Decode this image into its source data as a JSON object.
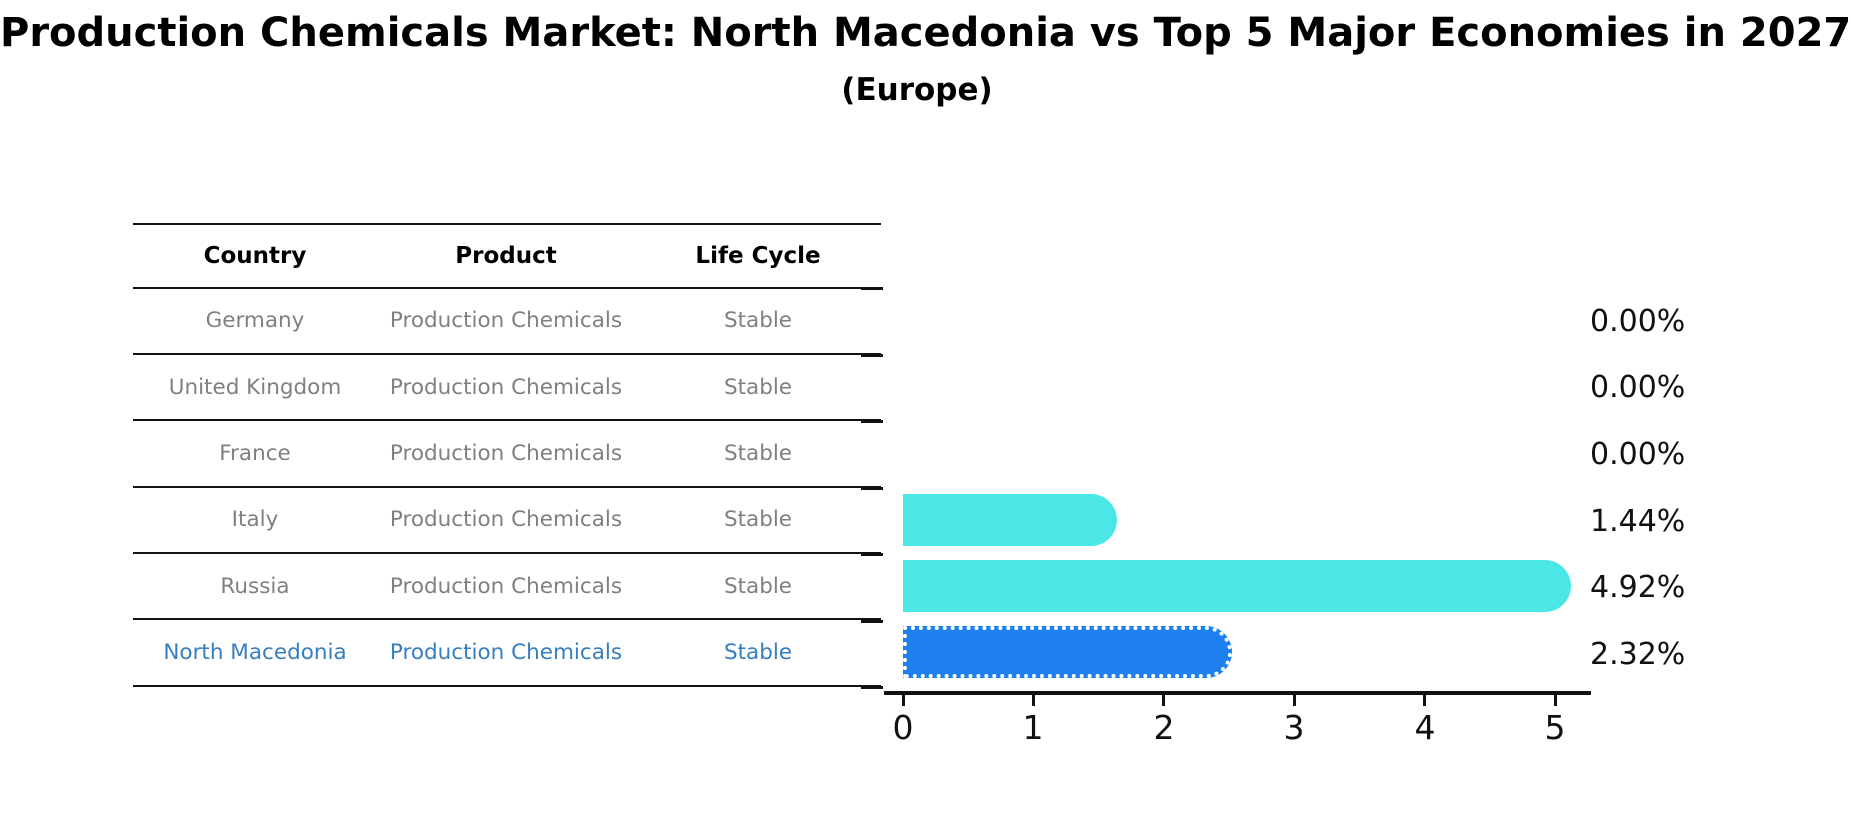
{
  "title": "Production Chemicals Market: North Macedonia vs Top 5 Major Economies in 2027",
  "subtitle": "(Europe)",
  "table": {
    "headers": [
      "Country",
      "Product",
      "Life Cycle"
    ],
    "rows": [
      {
        "country": "Germany",
        "product": "Production Chemicals",
        "life_cycle": "Stable",
        "value_label": "0.00%",
        "highlight": false
      },
      {
        "country": "United Kingdom",
        "product": "Production Chemicals",
        "life_cycle": "Stable",
        "value_label": "0.00%",
        "highlight": false
      },
      {
        "country": "France",
        "product": "Production Chemicals",
        "life_cycle": "Stable",
        "value_label": "0.00%",
        "highlight": false
      },
      {
        "country": "Italy",
        "product": "Production Chemicals",
        "life_cycle": "Stable",
        "value_label": "1.44%",
        "highlight": false
      },
      {
        "country": "Russia",
        "product": "Production Chemicals",
        "life_cycle": "Stable",
        "value_label": "4.92%",
        "highlight": false
      },
      {
        "country": "North Macedonia",
        "product": "Production Chemicals",
        "life_cycle": "Stable",
        "value_label": "2.32%",
        "highlight": true
      }
    ]
  },
  "chart_data": {
    "type": "bar",
    "orientation": "horizontal",
    "title": "Production Chemicals Market: North Macedonia vs Top 5 Major Economies in 2027 (Europe)",
    "categories": [
      "Germany",
      "United Kingdom",
      "France",
      "Italy",
      "Russia",
      "North Macedonia"
    ],
    "values": [
      0.0,
      0.0,
      0.0,
      1.44,
      4.92,
      2.32
    ],
    "value_labels": [
      "0.00%",
      "0.00%",
      "0.00%",
      "1.44%",
      "4.92%",
      "2.32%"
    ],
    "xlabel": "",
    "ylabel": "",
    "xlim": [
      0,
      5.35
    ],
    "xticks": [
      "0",
      "1",
      "2",
      "3",
      "4",
      "5"
    ],
    "grid": false,
    "legend": false,
    "highlight_category": "North Macedonia",
    "bar_fill_colors": [
      "#4BE6E6",
      "#4BE6E6",
      "#4BE6E6",
      "#4BE6E6",
      "#4BE6E6",
      "#1E80EE"
    ]
  },
  "colors": {
    "bar_cyan": "#4BE6E6",
    "bar_highlight_blue": "#1E80EE",
    "highlight_text": "#377EBE",
    "row_text": "#808080",
    "axis": "#111111"
  }
}
